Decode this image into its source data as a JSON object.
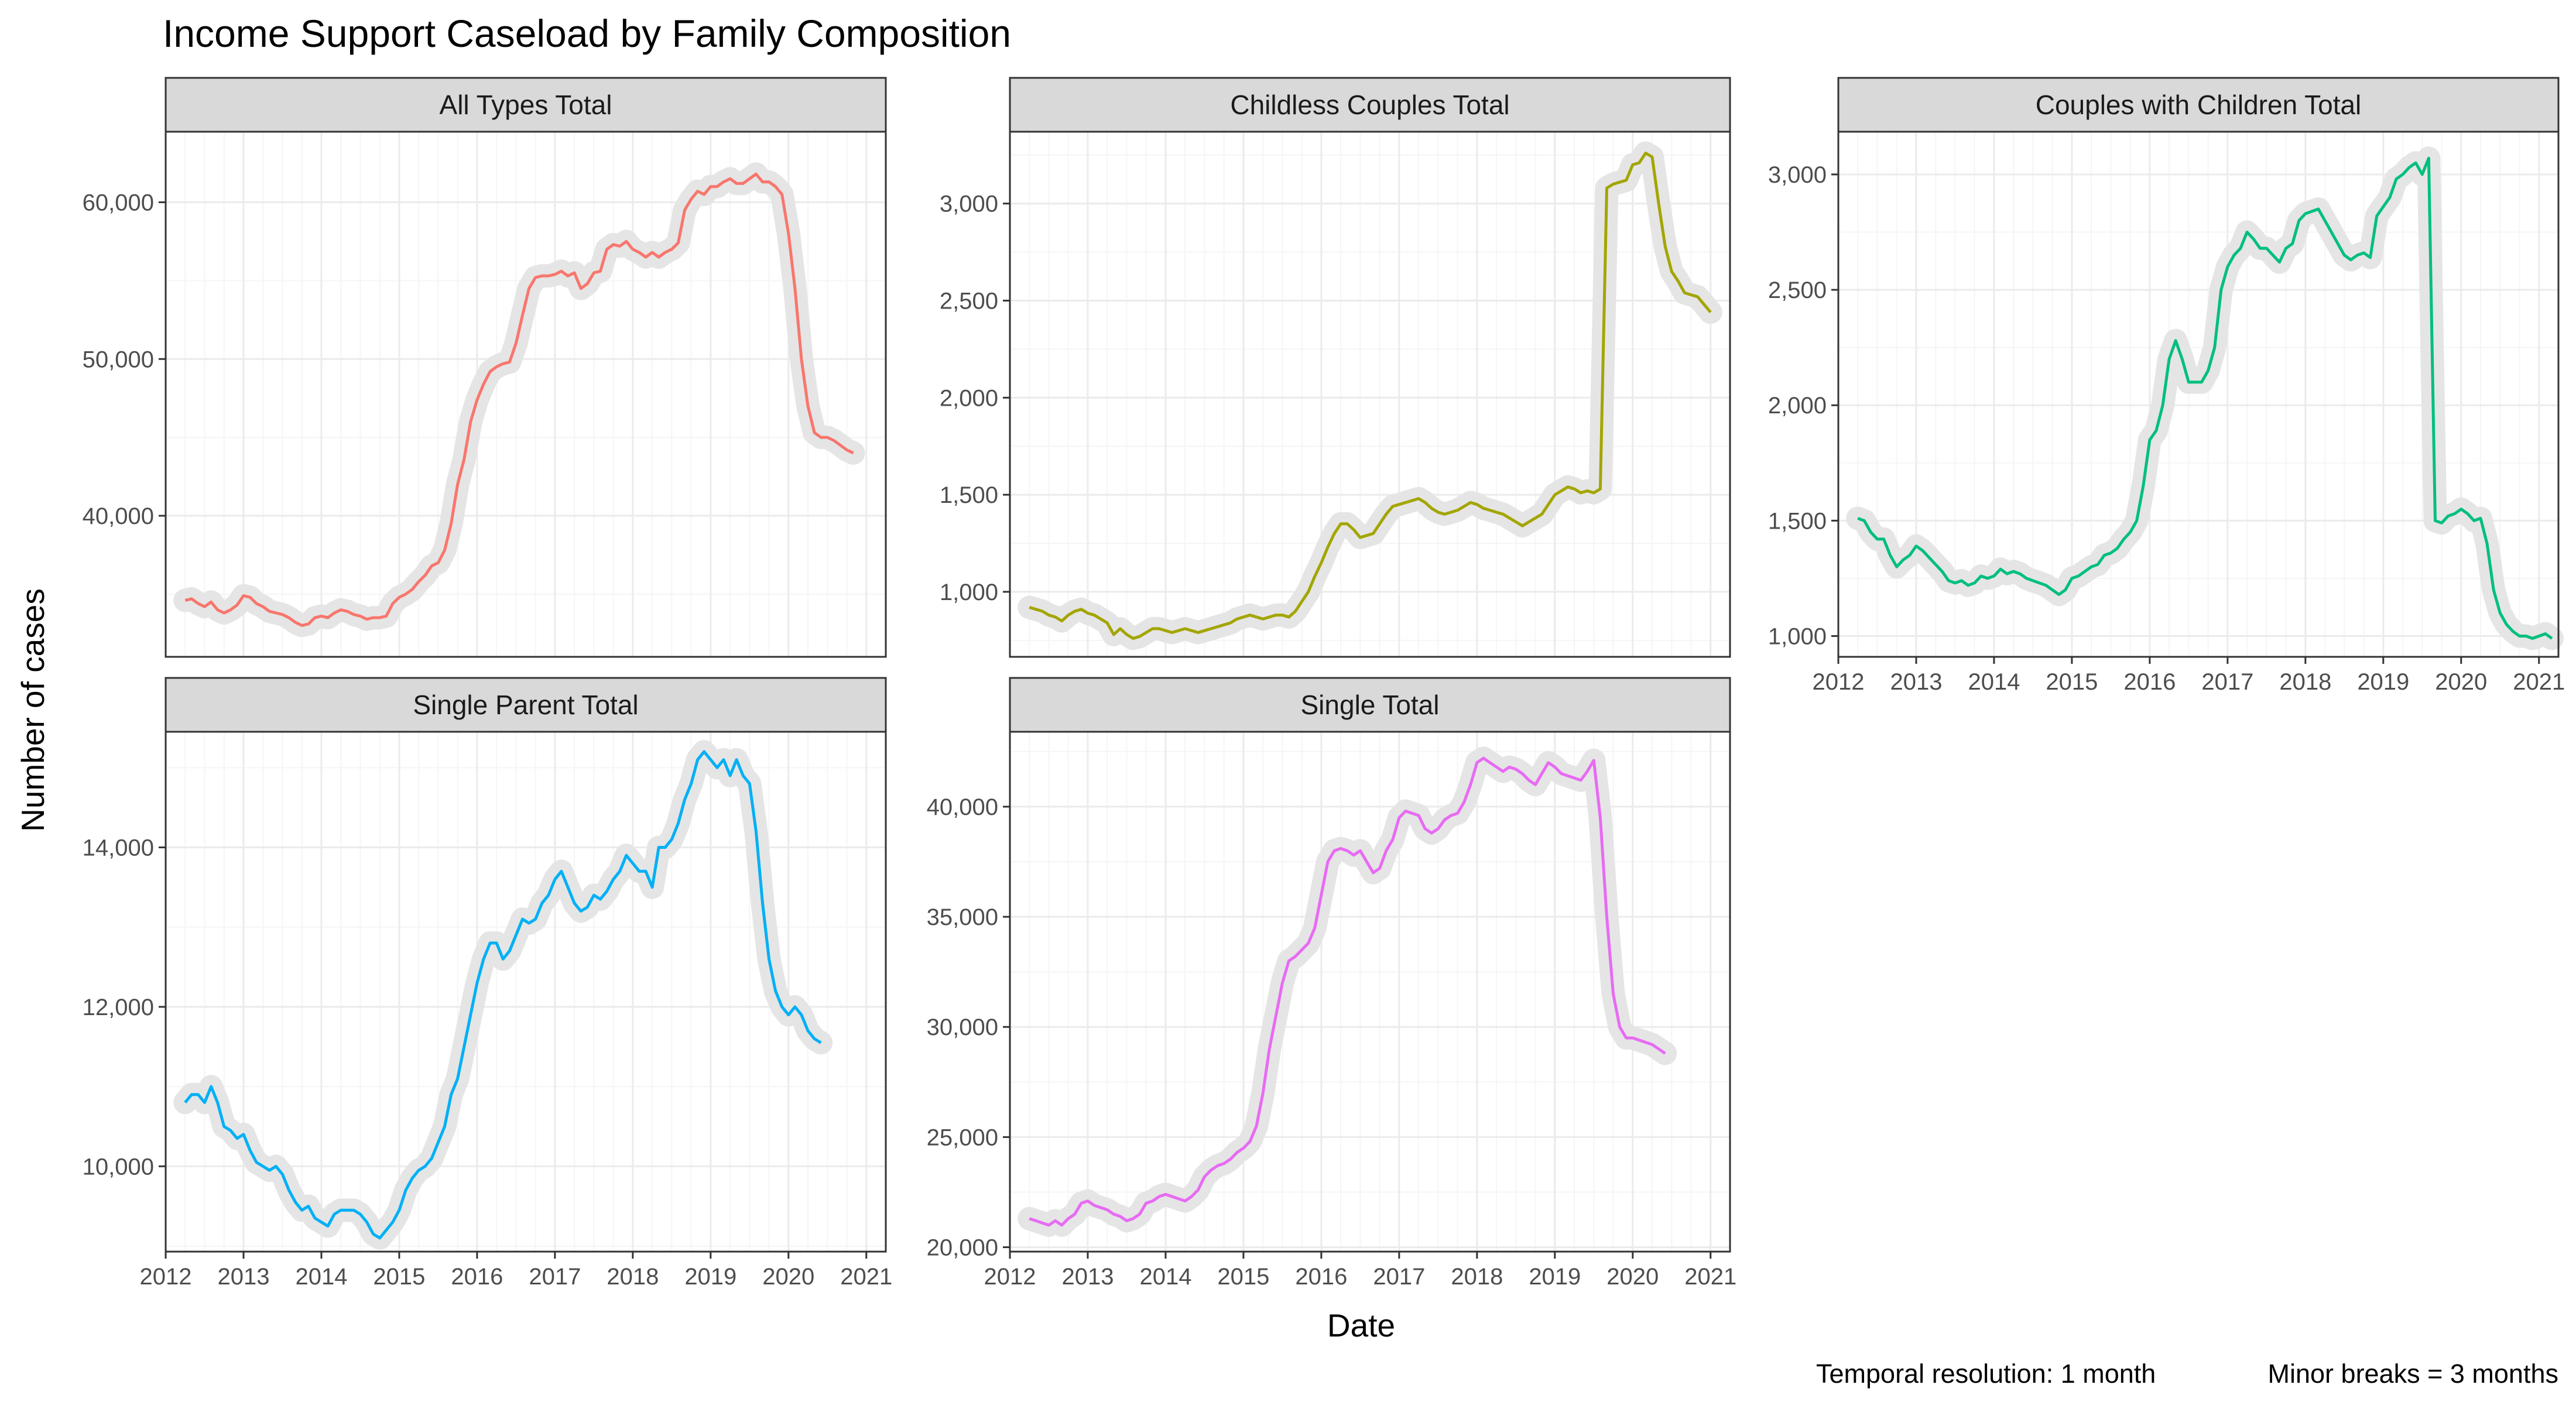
{
  "title": "Income Support Caseload by Family Composition",
  "xlabel": "Date",
  "ylabel": "Number of cases",
  "caption": {
    "left": "Temporal resolution: 1 month",
    "right": "Minor breaks = 3 months"
  },
  "colors": {
    "grid_major": "#ebebeb",
    "grid_minor": "#f5f5f5",
    "strip_fill": "#d9d9d9",
    "border": "#333333",
    "halo": "#e5e5e5"
  },
  "chart_data": [
    {
      "type": "line",
      "title": "All Types Total",
      "color": "#F8766D",
      "x_range": [
        "2012-01",
        "2021-04"
      ],
      "x_ticks": [
        "2012",
        "2013",
        "2014",
        "2015",
        "2016",
        "2017",
        "2018",
        "2019",
        "2020",
        "2021"
      ],
      "ylim": [
        31000,
        64500
      ],
      "y_ticks": [
        40000,
        50000,
        60000
      ],
      "y_tick_labels": [
        "40,000",
        "50,000",
        "60,000"
      ],
      "start": "2012-04",
      "values": [
        34600,
        34700,
        34400,
        34200,
        34500,
        34000,
        33800,
        34000,
        34300,
        34900,
        34800,
        34400,
        34200,
        33900,
        33800,
        33700,
        33500,
        33200,
        33000,
        33100,
        33500,
        33600,
        33500,
        33800,
        34000,
        33900,
        33700,
        33600,
        33400,
        33500,
        33500,
        33600,
        34400,
        34800,
        35000,
        35300,
        35800,
        36200,
        36800,
        37000,
        37800,
        39500,
        42000,
        43600,
        46000,
        47400,
        48400,
        49200,
        49500,
        49700,
        49800,
        51000,
        52800,
        54500,
        55200,
        55300,
        55300,
        55400,
        55600,
        55300,
        55500,
        54500,
        54800,
        55500,
        55600,
        57000,
        57300,
        57200,
        57500,
        57000,
        56800,
        56500,
        56800,
        56500,
        56800,
        57000,
        57400,
        59500,
        60200,
        60700,
        60500,
        61000,
        61000,
        61300,
        61500,
        61200,
        61200,
        61500,
        61800,
        61300,
        61300,
        61000,
        60500,
        58000,
        54500,
        50000,
        47000,
        45300,
        45000,
        45000,
        44800,
        44500,
        44200,
        44000
      ]
    },
    {
      "type": "line",
      "title": "Childless Couples Total",
      "color": "#A3A500",
      "x_range": [
        "2012-01",
        "2021-04"
      ],
      "x_ticks": [
        "2012",
        "2013",
        "2014",
        "2015",
        "2016",
        "2017",
        "2018",
        "2019",
        "2020",
        "2021"
      ],
      "ylim": [
        665,
        3370
      ],
      "y_ticks": [
        1000,
        1500,
        2000,
        2500,
        3000
      ],
      "y_tick_labels": [
        "1,000",
        "1,500",
        "2,000",
        "2,500",
        "3,000"
      ],
      "start": "2012-04",
      "values": [
        920,
        910,
        900,
        880,
        870,
        850,
        880,
        900,
        910,
        890,
        880,
        860,
        840,
        780,
        810,
        780,
        760,
        770,
        790,
        810,
        810,
        800,
        790,
        800,
        810,
        800,
        790,
        800,
        810,
        820,
        830,
        840,
        860,
        870,
        880,
        870,
        860,
        870,
        880,
        880,
        870,
        900,
        950,
        1000,
        1080,
        1150,
        1230,
        1300,
        1350,
        1350,
        1320,
        1280,
        1290,
        1300,
        1350,
        1400,
        1440,
        1450,
        1460,
        1470,
        1480,
        1460,
        1430,
        1410,
        1400,
        1410,
        1420,
        1440,
        1460,
        1450,
        1430,
        1420,
        1410,
        1400,
        1380,
        1360,
        1340,
        1360,
        1380,
        1400,
        1450,
        1500,
        1520,
        1540,
        1530,
        1510,
        1520,
        1510,
        1530,
        3080,
        3100,
        3110,
        3120,
        3200,
        3210,
        3260,
        3240,
        3000,
        2780,
        2650,
        2600,
        2540,
        2530,
        2520,
        2480,
        2440
      ]
    },
    {
      "type": "line",
      "title": "Couples with Children Total",
      "color": "#00BF7D",
      "x_range": [
        "2012-01",
        "2021-04"
      ],
      "x_ticks": [
        "2012",
        "2013",
        "2014",
        "2015",
        "2016",
        "2017",
        "2018",
        "2019",
        "2020",
        "2021"
      ],
      "ylim": [
        910,
        3185
      ],
      "y_ticks": [
        1000,
        1500,
        2000,
        2500,
        3000
      ],
      "y_tick_labels": [
        "1,000",
        "1,500",
        "2,000",
        "2,500",
        "3,000"
      ],
      "start": "2012-04",
      "values": [
        1510,
        1500,
        1450,
        1420,
        1420,
        1350,
        1300,
        1330,
        1350,
        1390,
        1370,
        1340,
        1310,
        1280,
        1240,
        1230,
        1240,
        1220,
        1230,
        1260,
        1250,
        1260,
        1290,
        1270,
        1280,
        1270,
        1250,
        1240,
        1230,
        1220,
        1200,
        1180,
        1200,
        1250,
        1260,
        1280,
        1300,
        1310,
        1350,
        1360,
        1380,
        1420,
        1450,
        1500,
        1650,
        1850,
        1890,
        2000,
        2200,
        2280,
        2200,
        2100,
        2100,
        2100,
        2150,
        2250,
        2500,
        2600,
        2650,
        2680,
        2750,
        2720,
        2680,
        2680,
        2650,
        2620,
        2680,
        2700,
        2800,
        2830,
        2840,
        2850,
        2800,
        2750,
        2700,
        2650,
        2630,
        2650,
        2660,
        2640,
        2820,
        2860,
        2900,
        2980,
        3000,
        3030,
        3050,
        3000,
        3070,
        1500,
        1490,
        1520,
        1530,
        1550,
        1530,
        1500,
        1510,
        1400,
        1200,
        1100,
        1050,
        1020,
        1000,
        1000,
        990,
        1000,
        1010,
        990
      ]
    },
    {
      "type": "line",
      "title": "Single Parent Total",
      "color": "#00B0F6",
      "x_range": [
        "2012-01",
        "2021-04"
      ],
      "x_ticks": [
        "2012",
        "2013",
        "2014",
        "2015",
        "2016",
        "2017",
        "2018",
        "2019",
        "2020",
        "2021"
      ],
      "ylim": [
        8930,
        15450
      ],
      "y_ticks": [
        10000,
        12000,
        14000
      ],
      "y_tick_labels": [
        "10,000",
        "12,000",
        "14,000"
      ],
      "start": "2012-04",
      "values": [
        10800,
        10900,
        10900,
        10800,
        11000,
        10800,
        10500,
        10450,
        10350,
        10400,
        10200,
        10050,
        10000,
        9950,
        10000,
        9900,
        9700,
        9550,
        9450,
        9500,
        9350,
        9300,
        9250,
        9400,
        9450,
        9450,
        9450,
        9400,
        9300,
        9150,
        9100,
        9200,
        9300,
        9450,
        9700,
        9850,
        9950,
        10000,
        10100,
        10300,
        10500,
        10900,
        11100,
        11500,
        11900,
        12300,
        12600,
        12800,
        12800,
        12600,
        12700,
        12900,
        13100,
        13050,
        13100,
        13300,
        13400,
        13600,
        13700,
        13500,
        13300,
        13200,
        13250,
        13400,
        13350,
        13450,
        13600,
        13700,
        13900,
        13800,
        13700,
        13700,
        13500,
        14000,
        14000,
        14100,
        14300,
        14600,
        14800,
        15100,
        15200,
        15100,
        15000,
        15100,
        14900,
        15100,
        14900,
        14800,
        14200,
        13300,
        12600,
        12200,
        12000,
        11900,
        12000,
        11900,
        11700,
        11600,
        11550
      ]
    },
    {
      "type": "line",
      "title": "Single Total",
      "color": "#E76BF3",
      "x_range": [
        "2012-01",
        "2021-04"
      ],
      "x_ticks": [
        "2012",
        "2013",
        "2014",
        "2015",
        "2016",
        "2017",
        "2018",
        "2019",
        "2020",
        "2021"
      ],
      "ylim": [
        19800,
        43400
      ],
      "y_ticks": [
        20000,
        25000,
        30000,
        35000,
        40000
      ],
      "y_tick_labels": [
        "20,000",
        "25,000",
        "30,000",
        "35,000",
        "40,000"
      ],
      "start": "2012-04",
      "values": [
        21300,
        21200,
        21100,
        21000,
        21200,
        21000,
        21300,
        21500,
        22000,
        22100,
        21900,
        21800,
        21700,
        21500,
        21400,
        21200,
        21300,
        21500,
        22000,
        22100,
        22300,
        22400,
        22300,
        22200,
        22100,
        22300,
        22600,
        23200,
        23500,
        23700,
        23800,
        24000,
        24300,
        24500,
        24800,
        25500,
        27000,
        29000,
        30500,
        32000,
        33000,
        33200,
        33500,
        33800,
        34500,
        36000,
        37500,
        38000,
        38100,
        38000,
        37800,
        38000,
        37500,
        37000,
        37200,
        38000,
        38500,
        39500,
        39800,
        39700,
        39600,
        39000,
        38800,
        39000,
        39400,
        39600,
        39700,
        40200,
        41000,
        42000,
        42200,
        42000,
        41800,
        41600,
        41800,
        41700,
        41500,
        41200,
        41000,
        41500,
        42000,
        41800,
        41500,
        41400,
        41300,
        41200,
        41600,
        42100,
        39500,
        35000,
        31500,
        30000,
        29500,
        29500,
        29400,
        29300,
        29200,
        29000,
        28800
      ]
    }
  ]
}
